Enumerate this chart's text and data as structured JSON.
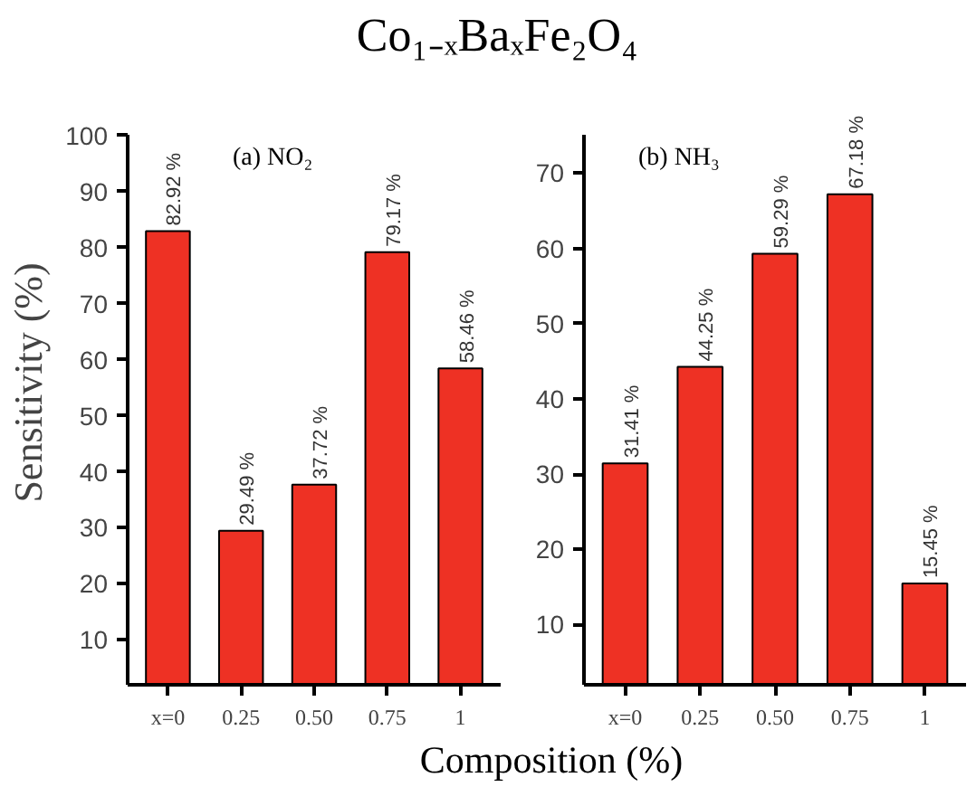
{
  "chart_data": [
    {
      "type": "bar",
      "title": "Co₁₋ₓBaₓFe₂O₄",
      "xlabel": "Composition (%)",
      "ylabel": "Sensitivity (%)",
      "annotations": [
        "(a) NO₂"
      ],
      "categories": [
        "x=0",
        "0.25",
        "0.50",
        "0.75",
        "1"
      ],
      "values": [
        82.92,
        29.49,
        37.72,
        79.17,
        58.46
      ],
      "value_labels": [
        "82.92 %",
        "29.49 %",
        "37.72 %",
        "79.17 %",
        "58.46 %"
      ],
      "color": "#ee3124",
      "ylim": [
        2,
        100
      ],
      "yticks": [
        10,
        20,
        30,
        40,
        50,
        60,
        70,
        80,
        90,
        100
      ],
      "grid": false
    },
    {
      "type": "bar",
      "annotations": [
        "(b) NH₃"
      ],
      "categories": [
        "x=0",
        "0.25",
        "0.50",
        "0.75",
        "1"
      ],
      "values": [
        31.41,
        44.25,
        59.29,
        67.18,
        15.45
      ],
      "value_labels": [
        "31.41 %",
        "44.25 %",
        "59.29 %",
        "67.18 %",
        "15.45 %"
      ],
      "color": "#ee3124",
      "ylim": [
        2,
        75
      ],
      "yticks": [
        10,
        20,
        30,
        40,
        50,
        60,
        70
      ],
      "grid": false
    }
  ]
}
